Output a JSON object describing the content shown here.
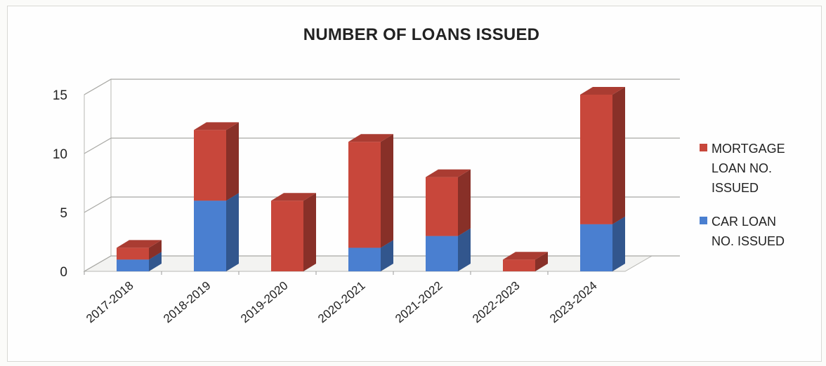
{
  "chart_data": {
    "type": "bar",
    "stacked": true,
    "three_d": true,
    "title": "NUMBER OF LOANS ISSUED",
    "xlabel": "",
    "ylabel": "",
    "categories": [
      "2017-2018",
      "2018-2019",
      "2019-2020",
      "2020-2021",
      "2021-2022",
      "2022-2023",
      "2023-2024"
    ],
    "series": [
      {
        "name": "CAR LOAN NO. ISSUED",
        "color": "#4a7fd0",
        "values": [
          1,
          6,
          0,
          2,
          3,
          0,
          4
        ]
      },
      {
        "name": "MORTGAGE LOAN NO. ISSUED",
        "color": "#c8473b",
        "values": [
          1,
          6,
          6,
          9,
          5,
          1,
          11
        ]
      }
    ],
    "yticks": [
      0,
      5,
      10,
      15
    ],
    "ylim": [
      0,
      15
    ],
    "grid": true,
    "legend_position": "right"
  }
}
